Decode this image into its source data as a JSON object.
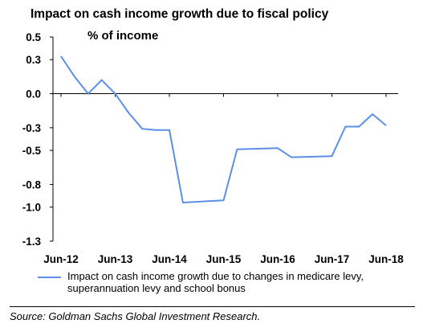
{
  "chart_data": {
    "type": "line",
    "title": "Impact on cash income growth due to fiscal policy",
    "ylabel": "% of income",
    "xlabel": "",
    "ylim": [
      -1.3,
      0.5
    ],
    "yticks": [
      0.5,
      0.3,
      0.0,
      -0.3,
      -0.5,
      -0.8,
      -1.0,
      -1.3
    ],
    "ytick_labels": [
      "0.5",
      "0.3",
      "0.0",
      "-0.3",
      "-0.5",
      "-0.8",
      "-1.0",
      "-1.3"
    ],
    "xtick_labels": [
      "Jun-12",
      "Jun-13",
      "Jun-14",
      "Jun-15",
      "Jun-16",
      "Jun-17",
      "Jun-18"
    ],
    "xlim": [
      "Jun-12",
      "Jun-18"
    ],
    "grid": false,
    "legend_position": "bottom",
    "series": [
      {
        "name": "Impact on cash income growth due to changes in medicare levy, superannuation levy and school bonus",
        "color": "#5b8fe8",
        "points": [
          {
            "x": "Jun-12",
            "y": 0.33
          },
          {
            "x": "Sep-12",
            "y": 0.15
          },
          {
            "x": "Dec-12",
            "y": 0.0
          },
          {
            "x": "Mar-13",
            "y": 0.12
          },
          {
            "x": "Jun-13",
            "y": 0.0
          },
          {
            "x": "Sep-13",
            "y": -0.17
          },
          {
            "x": "Dec-13",
            "y": -0.31
          },
          {
            "x": "Mar-14",
            "y": -0.32
          },
          {
            "x": "Jun-14",
            "y": -0.32
          },
          {
            "x": "Sep-14",
            "y": -0.96
          },
          {
            "x": "Jun-15",
            "y": -0.94
          },
          {
            "x": "Sep-15",
            "y": -0.49
          },
          {
            "x": "Jun-16",
            "y": -0.48
          },
          {
            "x": "Sep-16",
            "y": -0.56
          },
          {
            "x": "Jun-17",
            "y": -0.55
          },
          {
            "x": "Sep-17",
            "y": -0.29
          },
          {
            "x": "Dec-17",
            "y": -0.29
          },
          {
            "x": "Mar-18",
            "y": -0.18
          },
          {
            "x": "Jun-18",
            "y": -0.28
          }
        ]
      }
    ]
  },
  "source": "Source: Goldman Sachs Global Investment Research."
}
